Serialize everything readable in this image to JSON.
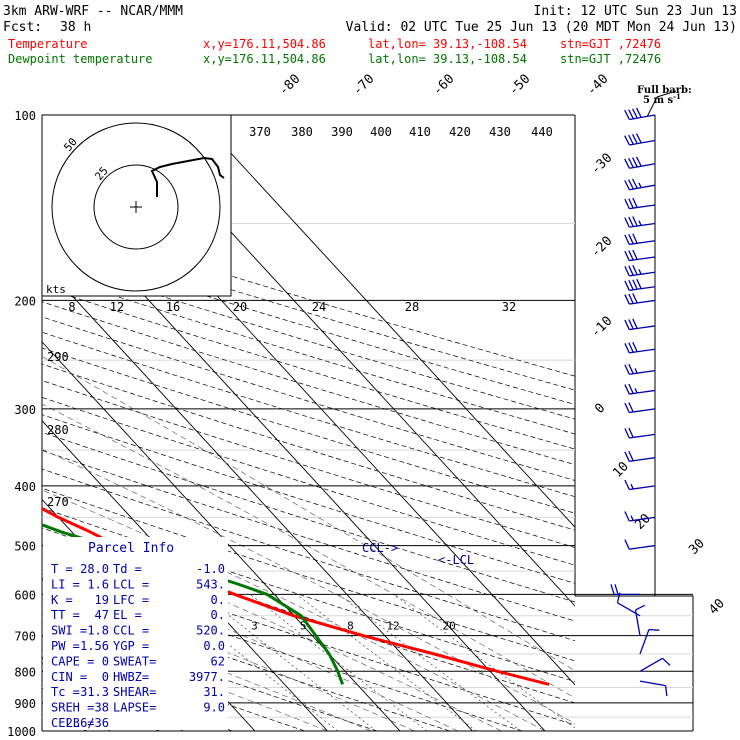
{
  "header": {
    "model": "3km ARW-WRF -- NCAR/MMM",
    "init": "Init: 12 UTC Sun 23 Jun 13",
    "fcst_label": "Fcst:",
    "fcst_value": "38 h",
    "valid": "Valid: 02 UTC Tue 25 Jun 13 (20 MDT Mon 24 Jun 13)",
    "lines": [
      {
        "name": "Temperature",
        "loc": "x,y=176.11,504.86",
        "latlon": "lat,lon= 39.13,-108.54",
        "stn": "stn=GJT ,72476",
        "color": "#ff0000"
      },
      {
        "name": "Dewpoint temperature",
        "loc": "x,y=176.11,504.86",
        "latlon": "lat,lon= 39.13,-108.54",
        "stn": "stn=GJT ,72476",
        "color": "#007700"
      }
    ]
  },
  "barb_legend": {
    "line1": "Full barb:",
    "line2": "5 m s",
    "sup": "-1"
  },
  "parcel_info": {
    "title": "Parcel Info",
    "rows": [
      [
        "T  =",
        "28.0",
        "Td =",
        "-1.0"
      ],
      [
        "LI =",
        "1.6",
        "LCL =",
        "543."
      ],
      [
        "K  =",
        "19",
        "LFC =",
        "0."
      ],
      [
        "TT =",
        "47",
        "EL  =",
        "0."
      ],
      [
        "SWI =",
        "1.8",
        "CCL =",
        "520."
      ],
      [
        "PW =",
        "1.56",
        "YGP =",
        "0.0"
      ],
      [
        "CAPE =",
        "0",
        "SWEAT=",
        "62"
      ],
      [
        "CIN =",
        "0",
        "HWBZ=",
        "3977."
      ],
      [
        "Tc =",
        "31.3",
        "SHEAR=",
        "31."
      ],
      [
        "SREH =",
        "38",
        "LAPSE=",
        "9.0"
      ],
      [
        "CELL =",
        "236/36",
        "",
        ""
      ]
    ]
  },
  "hodograph": {
    "units": "kts",
    "ring_labels": [
      "25",
      "50"
    ],
    "speed_labels": [
      "8",
      "12",
      "16",
      "20",
      "24",
      "28",
      "32"
    ]
  },
  "annotations": {
    "ccl": "CCL->",
    "lcl": "<-LCL"
  },
  "chart_data": {
    "type": "line",
    "title": "",
    "y_axis": {
      "label": "",
      "scale": "log",
      "ylim": [
        1000,
        100
      ],
      "ticks": [
        100,
        200,
        300,
        400,
        500,
        600,
        700,
        800,
        900,
        1000
      ]
    },
    "isotherm_labels": [
      -80,
      -70,
      -60,
      -50,
      -40,
      -30,
      -20,
      -10,
      0,
      10,
      20,
      30,
      40
    ],
    "theta_labels": [
      370,
      380,
      390,
      400,
      410,
      420,
      430,
      440
    ],
    "theta_left_labels": [
      290,
      280,
      270
    ],
    "mixing_ratio_labels": [
      "2",
      "3",
      "5",
      "8",
      "12",
      "20"
    ],
    "series": [
      {
        "name": "Temperature",
        "color": "#ff0000",
        "points": [
          [
            840,
            26.5
          ],
          [
            800,
            21
          ],
          [
            750,
            14.5
          ],
          [
            700,
            7
          ],
          [
            650,
            0
          ],
          [
            600,
            -5.5
          ],
          [
            550,
            -11
          ],
          [
            520,
            -13.5
          ],
          [
            500,
            -15.5
          ],
          [
            475,
            -17.5
          ],
          [
            450,
            -20
          ],
          [
            425,
            -22
          ],
          [
            400,
            -24
          ],
          [
            375,
            -27.5
          ],
          [
            350,
            -31
          ],
          [
            325,
            -35.5
          ],
          [
            300,
            -40
          ],
          [
            275,
            -44
          ],
          [
            250,
            -48
          ],
          [
            225,
            -52.5
          ],
          [
            200,
            -57
          ],
          [
            190,
            -60
          ],
          [
            180,
            -62.5
          ],
          [
            170,
            -64
          ],
          [
            160,
            -64.5
          ],
          [
            150,
            -64
          ],
          [
            140,
            -62.5
          ],
          [
            130,
            -61
          ],
          [
            120,
            -60
          ],
          [
            110,
            -59.5
          ],
          [
            100,
            -61
          ]
        ]
      },
      {
        "name": "Dewpoint temperature",
        "color": "#007700",
        "points": [
          [
            840,
            -2
          ],
          [
            800,
            -1
          ],
          [
            750,
            0
          ],
          [
            700,
            0.5
          ],
          [
            650,
            1
          ],
          [
            600,
            -1
          ],
          [
            575,
            -4
          ],
          [
            550,
            -8
          ],
          [
            525,
            -12
          ],
          [
            500,
            -17
          ],
          [
            475,
            -21.5
          ],
          [
            450,
            -25
          ],
          [
            425,
            -28
          ],
          [
            400,
            -31
          ],
          [
            375,
            -34
          ],
          [
            350,
            -38
          ],
          [
            325,
            -42
          ],
          [
            300,
            -47
          ],
          [
            275,
            -51.5
          ],
          [
            250,
            -56
          ],
          [
            225,
            -60.5
          ],
          [
            200,
            -65.5
          ],
          [
            190,
            -68
          ],
          [
            180,
            -70
          ],
          [
            170,
            -72
          ],
          [
            160,
            -74.5
          ],
          [
            150,
            -76.5
          ],
          [
            140,
            -78
          ],
          [
            130,
            -79
          ],
          [
            120,
            -79.5
          ],
          [
            110,
            -79.5
          ],
          [
            100,
            -80
          ]
        ]
      }
    ],
    "wind_barbs": [
      {
        "p": 100,
        "dir": 260,
        "spd": 42
      },
      {
        "p": 110,
        "dir": 260,
        "spd": 44
      },
      {
        "p": 120,
        "dir": 260,
        "spd": 42
      },
      {
        "p": 130,
        "dir": 260,
        "spd": 36
      },
      {
        "p": 140,
        "dir": 262,
        "spd": 34
      },
      {
        "p": 150,
        "dir": 262,
        "spd": 36
      },
      {
        "p": 160,
        "dir": 262,
        "spd": 34
      },
      {
        "p": 170,
        "dir": 262,
        "spd": 32
      },
      {
        "p": 180,
        "dir": 262,
        "spd": 36
      },
      {
        "p": 190,
        "dir": 262,
        "spd": 40
      },
      {
        "p": 200,
        "dir": 262,
        "spd": 32
      },
      {
        "p": 220,
        "dir": 262,
        "spd": 30
      },
      {
        "p": 240,
        "dir": 262,
        "spd": 30
      },
      {
        "p": 260,
        "dir": 262,
        "spd": 28
      },
      {
        "p": 280,
        "dir": 262,
        "spd": 26
      },
      {
        "p": 300,
        "dir": 262,
        "spd": 24
      },
      {
        "p": 330,
        "dir": 262,
        "spd": 22
      },
      {
        "p": 360,
        "dir": 262,
        "spd": 20
      },
      {
        "p": 400,
        "dir": 262,
        "spd": 18
      },
      {
        "p": 450,
        "dir": 262,
        "spd": 16
      },
      {
        "p": 500,
        "dir": 262,
        "spd": 14
      },
      {
        "p": 600,
        "dir": 270,
        "spd": 20
      },
      {
        "p": 650,
        "dir": 300,
        "spd": 12
      },
      {
        "p": 700,
        "dir": 350,
        "spd": 10
      },
      {
        "p": 750,
        "dir": 20,
        "spd": 12
      },
      {
        "p": 800,
        "dir": 60,
        "spd": 14
      },
      {
        "p": 830,
        "dir": 100,
        "spd": 14
      }
    ]
  }
}
